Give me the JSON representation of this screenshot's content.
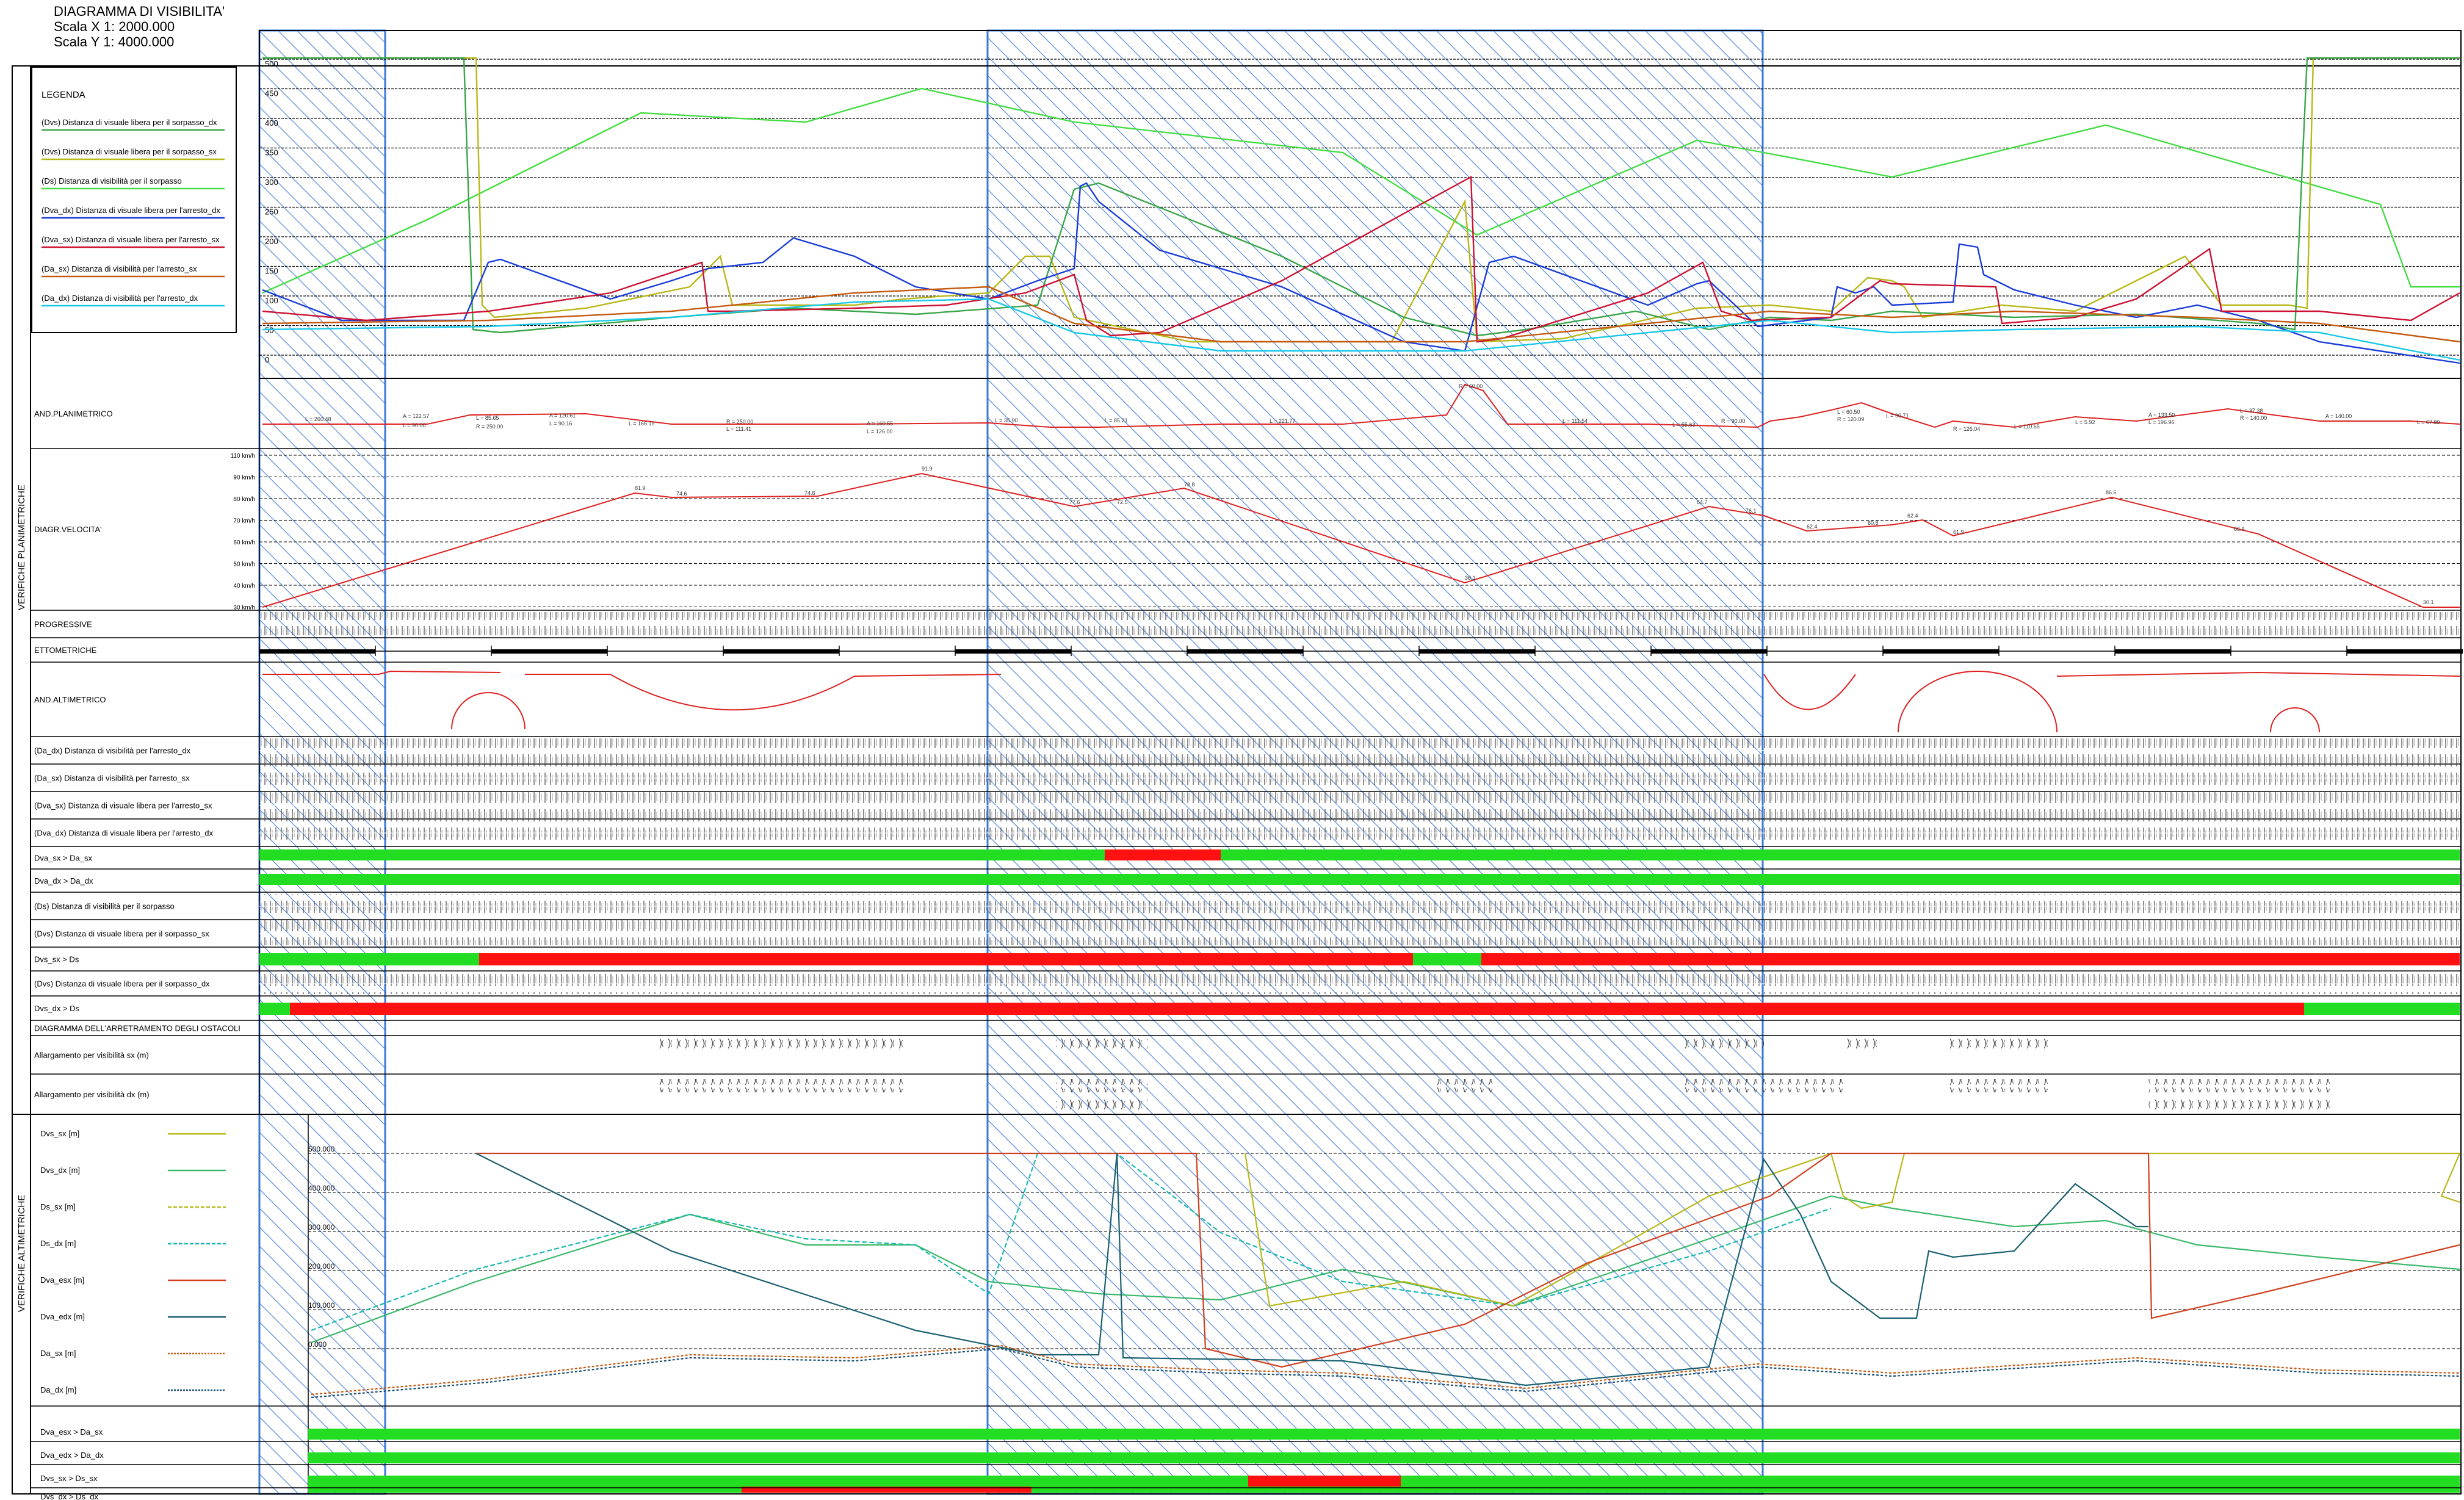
{
  "title": {
    "name": "DIAGRAMMA DI VISIBILITA'",
    "scale_x": "Scala X 1: 2000.000",
    "scale_y": "Scala Y 1: 4000.000"
  },
  "sections": {
    "planimetric_vertical": "VERIFICHE PLANIMETRICHE",
    "altimetric_vertical": "VERIFICHE ALTIMETRICHE"
  },
  "legend": {
    "title": "LEGENDA",
    "items": [
      {
        "label": "(Dvs) Distanza di visuale libera per il sorpasso_dx",
        "color": "#3aa64a"
      },
      {
        "label": "(Dvs) Distanza di visuale libera per il sorpasso_sx",
        "color": "#b8b819"
      },
      {
        "label": "(Ds) Distanza di visibilità per il sorpasso",
        "color": "#44dd44"
      },
      {
        "label": "(Dva_dx) Distanza di visuale libera per l'arresto_dx",
        "color": "#1a3cd8"
      },
      {
        "label": "(Dva_sx) Distanza di visuale libera per l'arresto_sx",
        "color": "#cc1133"
      },
      {
        "label": "(Da_sx) Distanza di visibilità per l'arresto_sx",
        "color": "#c55a11"
      },
      {
        "label": "(Da_dx) Distanza di visibilità per l'arresto_dx",
        "color": "#18c8e8"
      }
    ]
  },
  "top_chart": {
    "y_ticks": [
      "500",
      "450",
      "400",
      "350",
      "300",
      "250",
      "200",
      "150",
      "100",
      "50",
      "0"
    ]
  },
  "rows": {
    "planimetrico": "AND.PLANIMETRICO",
    "velocita": "DIAGR.VELOCITA'",
    "progressive": "PROGRESSIVE",
    "ettometriche": "ETTOMETRICHE",
    "altimetrico": "AND.ALTIMETRICO",
    "da_dx": "(Da_dx) Distanza di visibilità per l'arresto_dx",
    "da_sx": "(Da_sx) Distanza di visibilità per l'arresto_sx",
    "dva_sx": "(Dva_sx) Distanza di visuale libera per l'arresto_sx",
    "dva_dx": "(Dva_dx) Distanza di visuale libera per l'arresto_dx",
    "check1": "Dva_sx > Da_sx",
    "check2": "Dva_dx > Da_dx",
    "ds": "(Ds) Distanza di visibilità per il sorpasso",
    "dvs_sx": "(Dvs) Distanza di visuale libera per il sorpasso_sx",
    "check3": "Dvs_sx > Ds",
    "dvs_dx": "(Dvs) Distanza di visuale libera per il sorpasso_dx",
    "check4": "Dvs_dx > Ds",
    "arretramento": "DIAGRAMMA DELL'ARRETRAMENTO DEGLI OSTACOLI",
    "allarg_sx": "Allargamento per visibilità sx  (m)",
    "allarg_dx": "Allargamento per visibilità dx  (m)"
  },
  "speed_ticks": [
    "110 km/h",
    "90 km/h",
    "80 km/h",
    "70 km/h",
    "60 km/h",
    "50 km/h",
    "40 km/h",
    "30 km/h"
  ],
  "speed_labels": [
    "81.9",
    "74.6",
    "74.6",
    "91.9",
    "77.6",
    "72.5",
    "78.8",
    "36.1",
    "64.7",
    "76.1",
    "62.4",
    "60.8",
    "62.4",
    "61.9",
    "86.6",
    "66.9",
    "30.1"
  ],
  "alt_legend": {
    "items": [
      {
        "label": "Dvs_sx [m]",
        "color": "#b8b819",
        "dash": ""
      },
      {
        "label": "Dvs_dx [m]",
        "color": "#3ab86a",
        "dash": ""
      },
      {
        "label": "Ds_sx [m]",
        "color": "#b8b819",
        "dash": "6,3"
      },
      {
        "label": "Ds_dx [m]",
        "color": "#18b8b0",
        "dash": "6,3"
      },
      {
        "label": "Dva_esx [m]",
        "color": "#d04020",
        "dash": ""
      },
      {
        "label": "Dva_edx [m]",
        "color": "#1a6070",
        "dash": ""
      },
      {
        "label": "Da_sx [m]",
        "color": "#c55a11",
        "dash": "3,2"
      },
      {
        "label": "Da_dx [m]",
        "color": "#1a5070",
        "dash": "3,2"
      }
    ],
    "y_ticks": [
      "500.000",
      "400.000",
      "300.000",
      "200.000",
      "100.000",
      "0.000"
    ]
  },
  "alt_checks": [
    "Dva_esx > Da_sx",
    "Dva_edx > Da_dx",
    "Dvs_sx > Ds_sx",
    "Dvs_dx > Ds_dx"
  ],
  "colors": {
    "ok": "#22dd22",
    "fail": "#ff1111",
    "hatch": "#3a78d8",
    "profile": "#dd2222"
  }
}
